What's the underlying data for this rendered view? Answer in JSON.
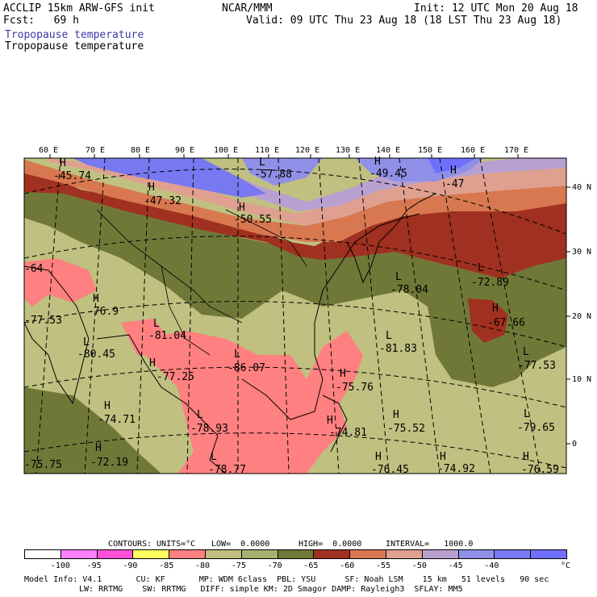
{
  "header": {
    "left1": "ACCLIP 15km ARW-GFS init",
    "left2": "Fcst:   69 h",
    "center": "NCAR/MMM",
    "right1": "Init: 12 UTC Mon 20 Aug 18",
    "right2": "Valid: 09 UTC Thu 23 Aug 18 (18 LST Thu 23 Aug 18)",
    "field1": "Tropopause temperature",
    "field2": "Tropopause temperature"
  },
  "axes": {
    "lon_labels": [
      "60 E",
      "70 E",
      "80 E",
      "90 E",
      "100 E",
      "110 E",
      "120 E",
      "130 E",
      "140 E",
      "150 E",
      "160 E",
      "170 E"
    ],
    "lat_labels": [
      "40 N",
      "30 N",
      "20 N",
      "10 N",
      "0"
    ]
  },
  "centers": [
    {
      "type": "H",
      "value": "-45.74"
    },
    {
      "type": "H",
      "value": "-47.32"
    },
    {
      "type": "L",
      "value": "-57.88"
    },
    {
      "type": "H",
      "value": "-50.55"
    },
    {
      "type": "H",
      "value": "-49.45"
    },
    {
      "type": "H",
      "value": "-47"
    },
    {
      "type": "H",
      "value": "-64"
    },
    {
      "type": "H",
      "value": "-76.9"
    },
    {
      "type": "L",
      "value": "-78.04"
    },
    {
      "type": "L",
      "value": "-72.89"
    },
    {
      "type": "H",
      "value": "-67.66"
    },
    {
      "type": "L",
      "value": "-80.45"
    },
    {
      "type": "L",
      "value": "-81.04"
    },
    {
      "type": "L",
      "value": "-81.83"
    },
    {
      "type": "H",
      "value": "-77.25"
    },
    {
      "type": "L",
      "value": "-86.07"
    },
    {
      "type": "H",
      "value": "-75.76"
    },
    {
      "type": "L",
      "value": "-77.53"
    },
    {
      "type": "H",
      "value": "-74.71"
    },
    {
      "type": "L",
      "value": "-78.93"
    },
    {
      "type": "H",
      "value": "-75.52"
    },
    {
      "type": "L",
      "value": "-79.65"
    },
    {
      "type": "H",
      "value": "-74.81"
    },
    {
      "type": "H",
      "value": "-72.19"
    },
    {
      "type": "H",
      "value": "-76.45"
    },
    {
      "type": "H",
      "value": "-74.92"
    },
    {
      "type": "H",
      "value": "-76.59"
    },
    {
      "type": "L",
      "value": "-78.77"
    },
    {
      "type": "H",
      "value": "-75.75"
    },
    {
      "type": "L",
      "value": "-77.53"
    }
  ],
  "contours_line": {
    "contours": "CONTOURS:",
    "units": "UNITS=°C",
    "low": "LOW=  0.0000",
    "high": "HIGH=  0.0000",
    "interval": "INTERVAL=   1000.0"
  },
  "legend": {
    "colors": [
      "#ffffff",
      "#ff80ff",
      "#ff50d8",
      "#ffff60",
      "#ff8080",
      "#c0c080",
      "#a8b070",
      "#707838",
      "#a03020",
      "#d87850",
      "#e0a090",
      "#b8a0d0",
      "#9090e8",
      "#7878f0",
      "#7070ff"
    ],
    "labels": [
      "-100",
      "-95",
      "-90",
      "-85",
      "-80",
      "-75",
      "-70",
      "-65",
      "-60",
      "-55",
      "-50",
      "-45",
      "-40"
    ],
    "unit": "°C"
  },
  "footer": {
    "line1": "Model Info: V4.1       CU: KF       MP: WDM 6class  PBL: YSU      SF: Noah LSM    15 km   51 levels   90 sec",
    "line2": "LW: RRTMG    SW: RRTMG   DIFF: simple KM: 2D Smagor DAMP: Rayleigh3  SFLAY: MM5"
  }
}
